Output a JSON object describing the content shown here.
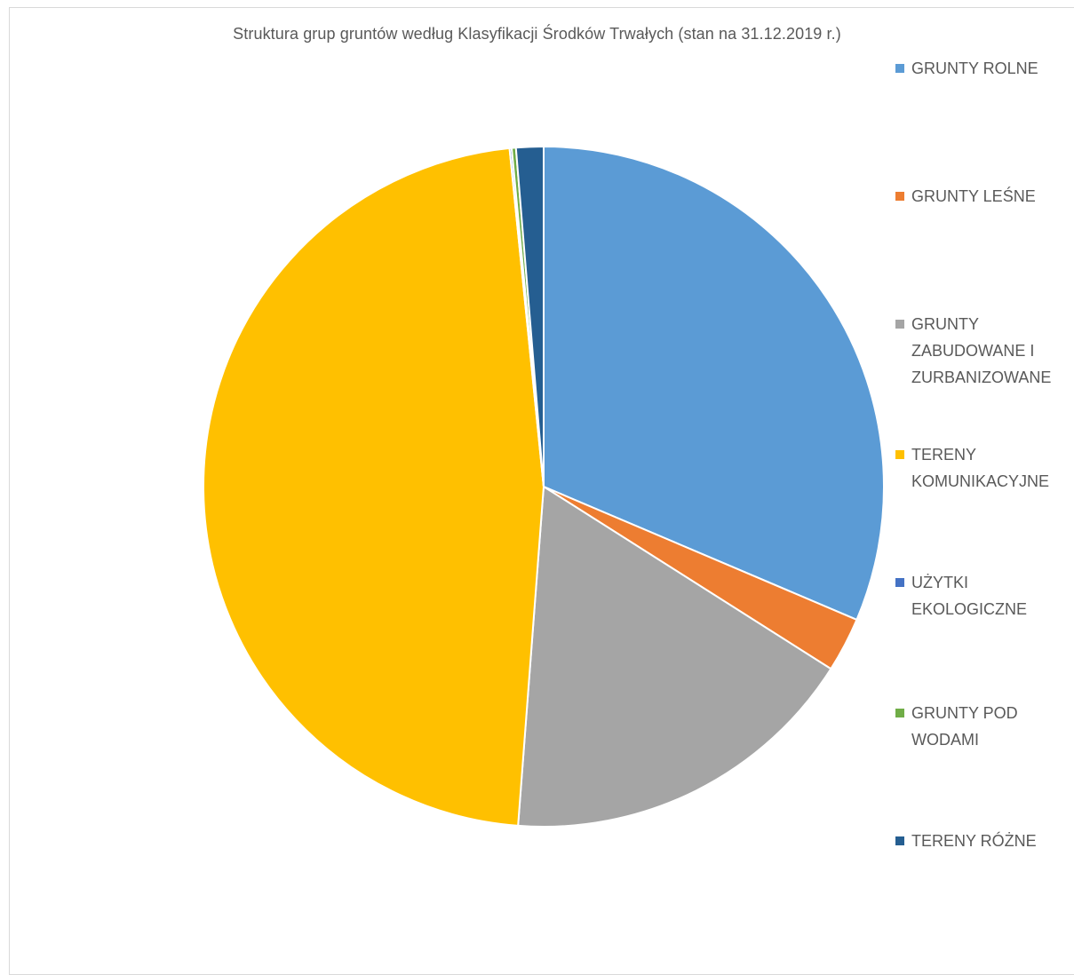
{
  "chart_data": {
    "type": "pie",
    "title": "Struktura grup gruntów według Klasyfikacji Środków Trwałych (stan na 31.12.2019 r.)",
    "categories": [
      "GRUNTY ROLNE",
      "GRUNTY LEŚNE",
      "GRUNTY ZABUDOWANE I ZURBANIZOWANE",
      "TERENY KOMUNIKACYJNE",
      "UŻYTKI EKOLOGICZNE",
      "GRUNTY POD WODAMI",
      "TERENY RÓŻNE"
    ],
    "values": [
      31.4,
      2.6,
      17.2,
      47.2,
      0.1,
      0.2,
      1.3
    ],
    "colors": [
      "#5B9BD5",
      "#ED7D31",
      "#A5A5A5",
      "#FFC000",
      "#4472C4",
      "#70AD47",
      "#255E91"
    ],
    "legend_position": "right"
  },
  "legend": [
    {
      "label": "GRUNTY ROLNE"
    },
    {
      "label": "GRUNTY LEŚNE"
    },
    {
      "label": "GRUNTY ZABUDOWANE I ZURBANIZOWANE"
    },
    {
      "label": "TERENY KOMUNIKACYJNE"
    },
    {
      "label": "UŻYTKI EKOLOGICZNE"
    },
    {
      "label": "GRUNTY POD WODAMI"
    },
    {
      "label": "TERENY RÓŻNE"
    }
  ]
}
